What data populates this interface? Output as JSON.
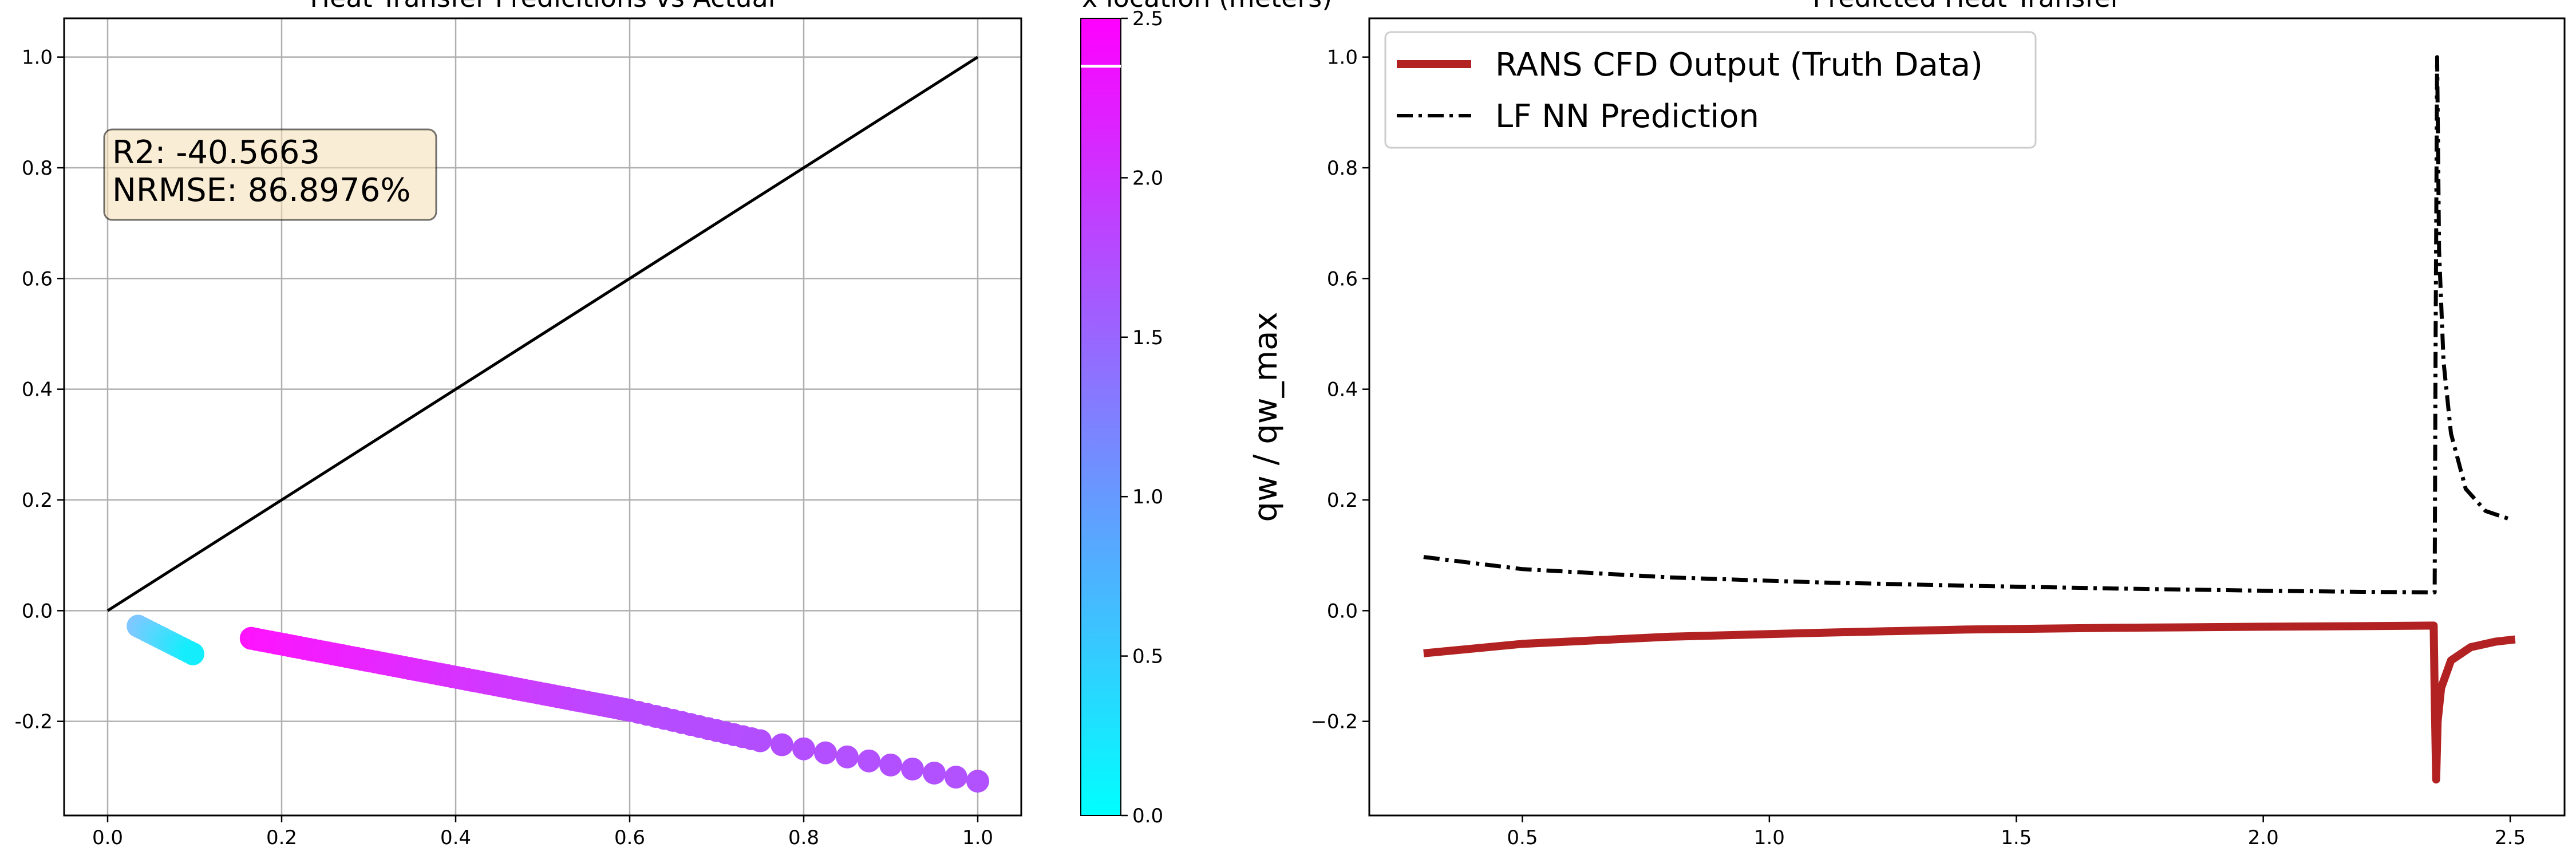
{
  "chart_data": [
    {
      "type": "scatter",
      "title": "Heat Transfer Predicitions vs Actual",
      "xlim": [
        -0.05,
        1.05
      ],
      "ylim": [
        -0.37,
        1.07
      ],
      "x_ticks": [
        "0.0",
        "0.2",
        "0.4",
        "0.6",
        "0.8",
        "1.0"
      ],
      "x_tick_values": [
        0.0,
        0.2,
        0.4,
        0.6,
        0.8,
        1.0
      ],
      "y_ticks": [
        "-0.2",
        "0.0",
        "0.2",
        "0.4",
        "0.6",
        "0.8",
        "1.0"
      ],
      "y_tick_values": [
        -0.2,
        0.0,
        0.2,
        0.4,
        0.6,
        0.8,
        1.0
      ],
      "grid": true,
      "reference_line": {
        "x": [
          0.0,
          1.0
        ],
        "y": [
          0.0,
          1.0
        ],
        "color": "#000000"
      },
      "annotation": {
        "lines": [
          "R2: -40.5663",
          "NRMSE: 86.8976%"
        ]
      },
      "series_segments": [
        {
          "x_start": 0.035,
          "y_start": -0.028,
          "x_end": 0.098,
          "y_end": -0.078,
          "count": 14,
          "color_start": "#7fc8ff",
          "color_end": "#14eefc"
        },
        {
          "x_start": 0.165,
          "y_start": -0.05,
          "x_end": 0.6,
          "y_end": -0.18,
          "count": 80,
          "color_start": "#ff13ff",
          "color_end": "#b84bff"
        },
        {
          "x_start": 0.6,
          "y_start": -0.18,
          "x_end": 0.75,
          "y_end": -0.235,
          "count": 16,
          "color_start": "#b84bff",
          "color_end": "#b34eff"
        },
        {
          "x_start": 0.75,
          "y_start": -0.235,
          "x_end": 1.0,
          "y_end": -0.308,
          "count": 11,
          "color_start": "#b34eff",
          "color_end": "#b252ff"
        }
      ],
      "colorbar": {
        "label": "x location (meters)",
        "range": [
          0.0,
          2.5
        ],
        "ticks": [
          "0.0",
          "0.5",
          "1.0",
          "1.5",
          "2.0",
          "2.5"
        ],
        "tick_values": [
          0.0,
          0.5,
          1.0,
          1.5,
          2.0,
          2.5
        ],
        "colormap": [
          "#00ffff",
          "#ff00ff"
        ],
        "marker_value": 2.35
      }
    },
    {
      "type": "line",
      "title": "Predicted Heat Transfer",
      "ylabel": "qw / qw_max",
      "xlim": [
        0.19,
        2.61
      ],
      "ylim": [
        -0.37,
        1.07
      ],
      "x_ticks": [
        "0.5",
        "1.0",
        "1.5",
        "2.0",
        "2.5"
      ],
      "x_tick_values": [
        0.5,
        1.0,
        1.5,
        2.0,
        2.5
      ],
      "y_ticks": [
        "-0.2",
        "0.0",
        "0.2",
        "0.4",
        "0.6",
        "0.8",
        "1.0"
      ],
      "y_tick_values": [
        -0.2,
        0.0,
        0.2,
        0.4,
        0.6,
        0.8,
        1.0
      ],
      "grid": false,
      "legend": {
        "position": "upper-left"
      },
      "series": [
        {
          "name": "RANS CFD Output (Truth Data)",
          "color": "#b22222",
          "style": "solid",
          "x": [
            0.3,
            0.5,
            0.8,
            1.1,
            1.4,
            1.7,
            2.0,
            2.2,
            2.345,
            2.347,
            2.35,
            2.353,
            2.36,
            2.38,
            2.42,
            2.47,
            2.51
          ],
          "y": [
            -0.077,
            -0.06,
            -0.047,
            -0.04,
            -0.034,
            -0.031,
            -0.029,
            -0.028,
            -0.027,
            -0.15,
            -0.305,
            -0.2,
            -0.14,
            -0.09,
            -0.066,
            -0.056,
            -0.052
          ]
        },
        {
          "name": "LF NN Prediction",
          "color": "#000000",
          "style": "dashdot",
          "x": [
            0.3,
            0.5,
            0.8,
            1.1,
            1.4,
            1.7,
            2.0,
            2.2,
            2.347,
            2.349,
            2.352,
            2.356,
            2.365,
            2.38,
            2.41,
            2.45,
            2.5
          ],
          "y": [
            0.097,
            0.075,
            0.06,
            0.051,
            0.045,
            0.04,
            0.036,
            0.034,
            0.033,
            0.5,
            1.0,
            0.65,
            0.45,
            0.32,
            0.22,
            0.18,
            0.165
          ]
        }
      ]
    }
  ]
}
